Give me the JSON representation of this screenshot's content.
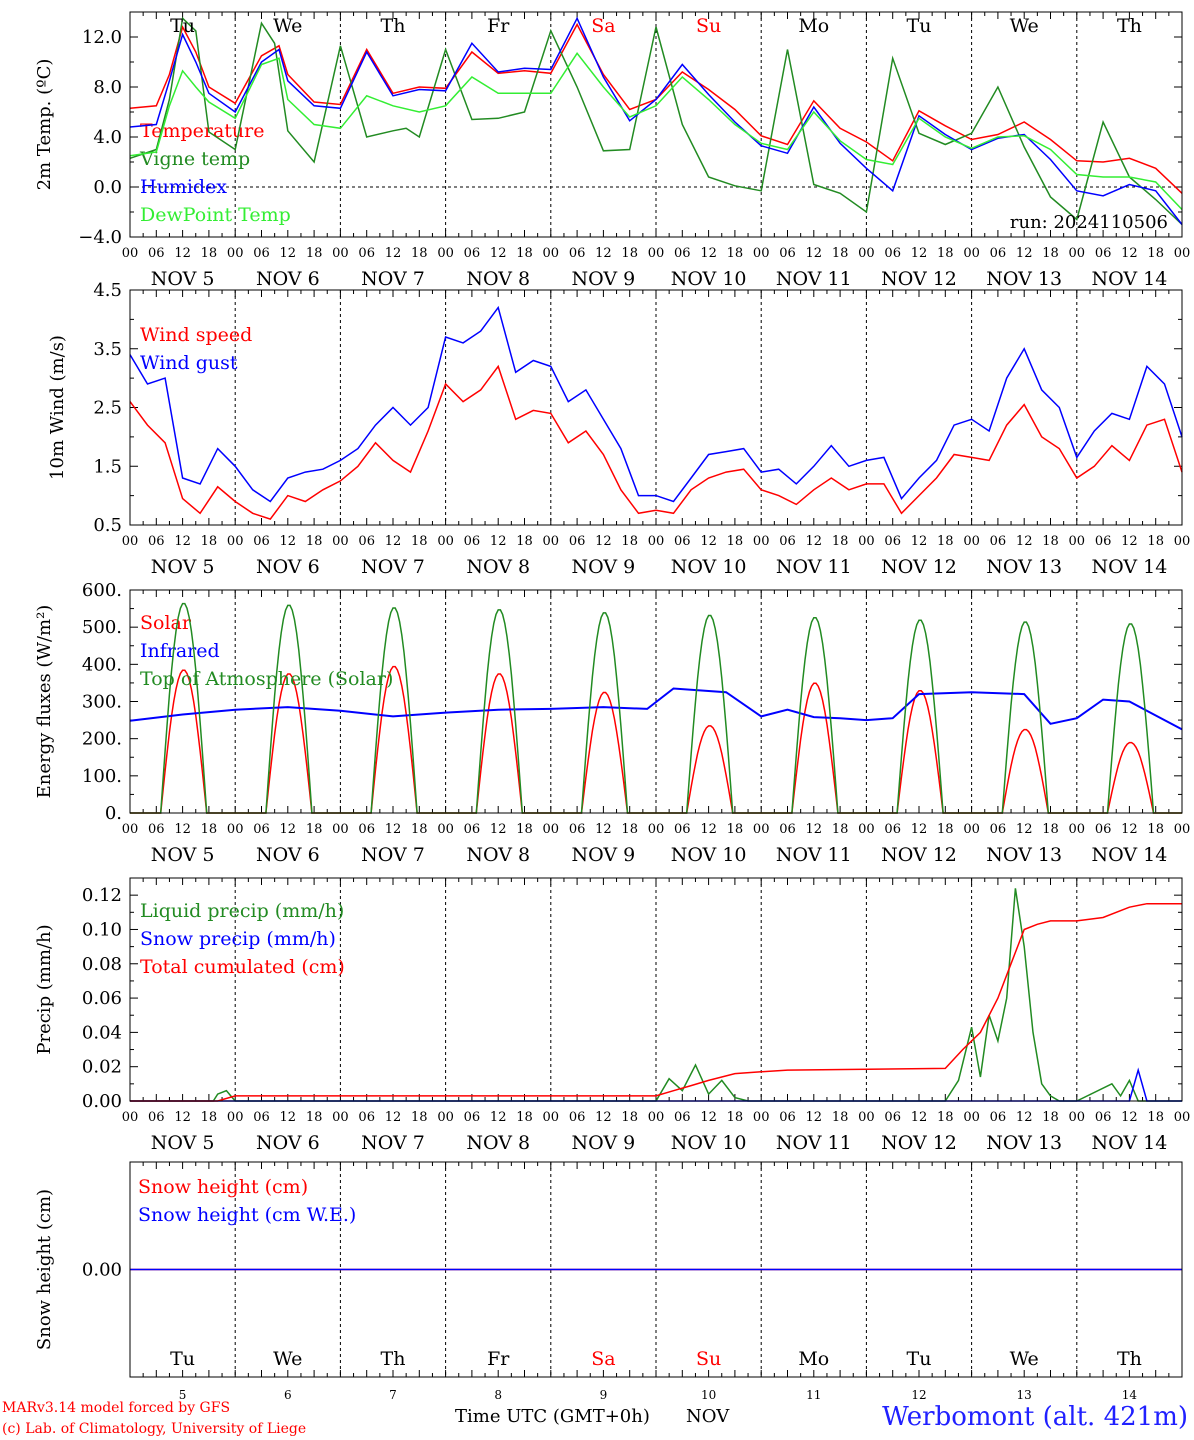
{
  "chart_data": [
    {
      "type": "line",
      "ylabel": "2m Temp. (ºC)",
      "ylim": [
        -4,
        14
      ],
      "yticks": [
        "12.0",
        "8.0",
        "4.0",
        "0.0",
        "−4.0"
      ],
      "run_label": "run: 2024110506",
      "zero_line": true,
      "series": [
        {
          "name": "Temperature",
          "color": "#ff0000",
          "t": [
            0,
            6,
            9,
            12,
            15,
            18,
            24,
            30,
            34,
            36,
            42,
            48,
            54,
            60,
            66,
            72,
            78,
            84,
            90,
            96,
            102,
            108,
            114,
            120,
            126,
            132,
            138,
            144,
            150,
            156,
            162,
            168,
            174,
            180,
            186,
            192,
            198,
            204,
            210,
            216,
            222,
            228,
            234,
            240
          ],
          "values": [
            6.3,
            6.5,
            9,
            12.8,
            10.8,
            8,
            6.7,
            10.5,
            11.3,
            9,
            6.8,
            6.6,
            11,
            7.5,
            8,
            7.9,
            10.8,
            9.1,
            9.3,
            9.1,
            13,
            9,
            6.2,
            7,
            9.2,
            7.8,
            6.2,
            4.1,
            3.4,
            6.9,
            4.7,
            3.6,
            2.1,
            6.1,
            4.9,
            3.8,
            4.2,
            5.2,
            3.8,
            2.1,
            2,
            2.3,
            1.5,
            -0.5
          ]
        },
        {
          "name": "Vigne temp",
          "color": "#228b22",
          "t": [
            0,
            6,
            9,
            12,
            15,
            18,
            24,
            30,
            33,
            36,
            42,
            48,
            54,
            60,
            63,
            66,
            72,
            78,
            84,
            90,
            96,
            102,
            108,
            114,
            120,
            126,
            132,
            138,
            144,
            150,
            156,
            162,
            168,
            174,
            180,
            186,
            192,
            198,
            204,
            210,
            216,
            222,
            228,
            234,
            240
          ],
          "values": [
            2.3,
            3,
            7,
            13.5,
            12.5,
            4.4,
            3,
            13.1,
            11.5,
            4.5,
            2,
            11.3,
            4,
            4.5,
            4.7,
            4,
            11,
            5.4,
            5.5,
            6,
            12.5,
            8,
            2.9,
            3,
            12.8,
            5,
            0.8,
            0.1,
            -0.3,
            11,
            0.2,
            -0.5,
            -2,
            10.3,
            4.3,
            3.4,
            4.3,
            8,
            3.2,
            -0.8,
            -2.6,
            5.2,
            0.8,
            -1,
            -3
          ]
        },
        {
          "name": "Humidex",
          "color": "#0000ff",
          "t": [
            0,
            6,
            9,
            12,
            15,
            18,
            24,
            30,
            34,
            36,
            42,
            48,
            54,
            60,
            66,
            72,
            78,
            84,
            90,
            96,
            102,
            108,
            114,
            120,
            126,
            132,
            138,
            144,
            150,
            156,
            162,
            168,
            174,
            180,
            186,
            192,
            198,
            204,
            210,
            216,
            222,
            228,
            234,
            240
          ],
          "values": [
            4.8,
            5,
            8.5,
            12.2,
            10,
            7.5,
            6,
            10,
            11,
            8.5,
            6.5,
            6.3,
            10.8,
            7.3,
            7.8,
            7.7,
            11.5,
            9.2,
            9.5,
            9.4,
            13.5,
            8.8,
            5.3,
            7,
            9.8,
            7.4,
            5.2,
            3.3,
            2.7,
            6.4,
            3.5,
            1.5,
            -0.3,
            5.7,
            4.2,
            3,
            3.9,
            4.2,
            2.2,
            -0.3,
            -0.7,
            0.2,
            -0.3,
            -3
          ]
        },
        {
          "name": "DewPoint Temp",
          "color": "#33ee33",
          "t": [
            0,
            6,
            9,
            12,
            15,
            18,
            24,
            30,
            34,
            36,
            42,
            48,
            54,
            60,
            66,
            72,
            78,
            84,
            90,
            96,
            102,
            108,
            114,
            120,
            126,
            132,
            138,
            144,
            150,
            156,
            162,
            168,
            174,
            180,
            186,
            192,
            198,
            204,
            210,
            216,
            222,
            228,
            234,
            240
          ],
          "values": [
            2.5,
            2.8,
            6.5,
            9.3,
            8,
            6.8,
            5.5,
            9.8,
            10.3,
            7,
            5,
            4.7,
            7.3,
            6.5,
            6,
            6.5,
            8.8,
            7.5,
            7.5,
            7.5,
            10.7,
            8,
            5.6,
            6.5,
            8.8,
            7,
            5,
            3.5,
            3,
            6,
            3.7,
            2.2,
            1.8,
            5.5,
            4,
            3.1,
            4,
            4.1,
            3,
            1,
            0.8,
            0.8,
            0.4,
            -1.8
          ]
        }
      ]
    },
    {
      "type": "line",
      "ylabel": "10m Wind (m/s)",
      "ylim": [
        0.5,
        4.5
      ],
      "yticks": [
        "4.5",
        "3.5",
        "2.5",
        "1.5",
        "0.5"
      ],
      "series": [
        {
          "name": "Wind speed",
          "color": "#ff0000",
          "t": [
            0,
            4,
            8,
            12,
            16,
            20,
            24,
            28,
            32,
            36,
            40,
            44,
            48,
            52,
            56,
            60,
            64,
            68,
            72,
            76,
            80,
            84,
            88,
            92,
            96,
            100,
            104,
            108,
            112,
            116,
            120,
            124,
            128,
            132,
            136,
            140,
            144,
            148,
            152,
            156,
            160,
            164,
            168,
            172,
            176,
            180,
            184,
            188,
            192,
            196,
            200,
            204,
            208,
            212,
            216,
            220,
            224,
            228,
            232,
            236,
            240
          ],
          "values": [
            2.6,
            2.2,
            1.9,
            0.95,
            0.7,
            1.15,
            0.9,
            0.7,
            0.6,
            1,
            0.9,
            1.1,
            1.25,
            1.5,
            1.9,
            1.6,
            1.4,
            2.1,
            2.9,
            2.6,
            2.8,
            3.2,
            2.3,
            2.45,
            2.4,
            1.9,
            2.1,
            1.7,
            1.1,
            0.7,
            0.75,
            0.7,
            1.1,
            1.3,
            1.4,
            1.45,
            1.1,
            1,
            0.85,
            1.1,
            1.3,
            1.1,
            1.2,
            1.2,
            0.7,
            1,
            1.3,
            1.7,
            1.65,
            1.6,
            2.2,
            2.55,
            2,
            1.8,
            1.3,
            1.5,
            1.85,
            1.6,
            2.2,
            2.3,
            1.4
          ]
        },
        {
          "name": "Wind gust",
          "color": "#0000ff",
          "t": [
            0,
            4,
            8,
            12,
            16,
            20,
            24,
            28,
            32,
            36,
            40,
            44,
            48,
            52,
            56,
            60,
            64,
            68,
            72,
            76,
            80,
            84,
            88,
            92,
            96,
            100,
            104,
            108,
            112,
            116,
            120,
            124,
            128,
            132,
            136,
            140,
            144,
            148,
            152,
            156,
            160,
            164,
            168,
            172,
            176,
            180,
            184,
            188,
            192,
            196,
            200,
            204,
            208,
            212,
            216,
            220,
            224,
            228,
            232,
            236,
            240
          ],
          "values": [
            3.4,
            2.9,
            3,
            1.3,
            1.2,
            1.8,
            1.5,
            1.1,
            0.9,
            1.3,
            1.4,
            1.45,
            1.6,
            1.8,
            2.2,
            2.5,
            2.2,
            2.5,
            3.7,
            3.6,
            3.8,
            4.2,
            3.1,
            3.3,
            3.2,
            2.6,
            2.8,
            2.3,
            1.8,
            1,
            1,
            0.9,
            1.3,
            1.7,
            1.75,
            1.8,
            1.4,
            1.45,
            1.2,
            1.5,
            1.85,
            1.5,
            1.6,
            1.65,
            0.95,
            1.3,
            1.6,
            2.2,
            2.3,
            2.1,
            3,
            3.5,
            2.8,
            2.5,
            1.65,
            2.1,
            2.4,
            2.3,
            3.2,
            2.9,
            2
          ]
        }
      ]
    },
    {
      "type": "line",
      "ylabel": "Energy fluxes (W/m²)",
      "ylim": [
        0,
        600
      ],
      "yticks": [
        "600.",
        "500.",
        "400.",
        "300.",
        "200.",
        "100.",
        "0."
      ],
      "series": [
        {
          "name": "Solar",
          "color": "#ff0000",
          "daily_peaks": [
            385,
            375,
            395,
            375,
            325,
            235,
            350,
            330,
            225,
            190
          ]
        },
        {
          "name": "Infrared",
          "color": "#0000ff",
          "t": [
            0,
            12,
            24,
            36,
            48,
            60,
            72,
            84,
            96,
            108,
            118,
            124,
            136,
            144,
            150,
            156,
            162,
            168,
            174,
            180,
            192,
            204,
            210,
            216,
            222,
            228,
            240
          ],
          "values": [
            248,
            265,
            278,
            285,
            275,
            260,
            270,
            278,
            280,
            285,
            280,
            335,
            325,
            260,
            278,
            258,
            255,
            250,
            255,
            320,
            325,
            320,
            240,
            255,
            305,
            300,
            225
          ]
        },
        {
          "name": "Top of Atmosphere (Solar)",
          "color": "#228b22",
          "daily_peaks": [
            565,
            560,
            553,
            548,
            540,
            533,
            527,
            520,
            515,
            510
          ]
        }
      ]
    },
    {
      "type": "line",
      "ylabel": "Precip (mm/h)",
      "ylim": [
        0,
        0.13
      ],
      "yticks": [
        "0.12",
        "0.10",
        "0.08",
        "0.06",
        "0.04",
        "0.02",
        "0.00"
      ],
      "series": [
        {
          "name": "Liquid precip (mm/h)",
          "color": "#228b22",
          "t": [
            0,
            19,
            20,
            22,
            23,
            24,
            120,
            123,
            126,
            129,
            132,
            135,
            138,
            141,
            144,
            186,
            189,
            192,
            194,
            196,
            198,
            200,
            202,
            204,
            206,
            208,
            210,
            212,
            216,
            224,
            226,
            228,
            230,
            232,
            234,
            240
          ],
          "values": [
            0,
            0,
            0.004,
            0.006,
            0.003,
            0,
            0,
            0.013,
            0.006,
            0.021,
            0.004,
            0.012,
            0.002,
            0,
            0,
            0,
            0.012,
            0.043,
            0.014,
            0.05,
            0.035,
            0.06,
            0.124,
            0.09,
            0.04,
            0.01,
            0.003,
            0,
            0,
            0.01,
            0.003,
            0.012,
            0,
            0,
            0,
            0
          ]
        },
        {
          "name": "Snow precip (mm/h)",
          "color": "#0000ff",
          "t": [
            0,
            228,
            230,
            232,
            234,
            240
          ],
          "values": [
            0,
            0,
            0.018,
            0,
            0,
            0
          ]
        },
        {
          "name": "Total cumulated (cm)",
          "color": "#ff0000",
          "t": [
            0,
            20,
            24,
            120,
            124,
            128,
            132,
            138,
            144,
            150,
            186,
            190,
            194,
            198,
            201,
            204,
            207,
            210,
            216,
            222,
            228,
            232,
            240
          ],
          "values": [
            0,
            0,
            0.003,
            0.003,
            0.006,
            0.009,
            0.012,
            0.016,
            0.017,
            0.018,
            0.019,
            0.03,
            0.04,
            0.06,
            0.08,
            0.1,
            0.103,
            0.105,
            0.105,
            0.107,
            0.113,
            0.115,
            0.115
          ]
        }
      ]
    },
    {
      "type": "line",
      "ylabel": "Snow height (cm)",
      "ylim": [
        -1,
        1
      ],
      "yticks": [
        "0.00"
      ],
      "series": [
        {
          "name": "Snow height (cm)",
          "color": "#ff0000",
          "t": [
            0,
            240
          ],
          "values": [
            0,
            0
          ]
        },
        {
          "name": "Snow height (cm W.E.)",
          "color": "#0000ff",
          "t": [
            0,
            240
          ],
          "values": [
            0,
            0
          ]
        }
      ]
    }
  ],
  "x_axis": {
    "hour_ticks": [
      "00",
      "06",
      "12",
      "18"
    ],
    "dates": [
      "NOV  5",
      "NOV  6",
      "NOV  7",
      "NOV  8",
      "NOV  9",
      "NOV 10",
      "NOV 11",
      "NOV 12",
      "NOV 13",
      "NOV 14"
    ],
    "weekdays": [
      "Tu",
      "We",
      "Th",
      "Fr",
      "Sa",
      "Su",
      "Mo",
      "Tu",
      "We",
      "Th"
    ],
    "weekend_color": "#ff0000",
    "day_numbers": [
      "5",
      "6",
      "7",
      "8",
      "9",
      "10",
      "11",
      "12",
      "13",
      "14"
    ]
  },
  "footer": {
    "credit_line1": "MARv3.14 model forced by GFS",
    "credit_line2": "(c) Lab. of Climatology, University of Liege",
    "xlabel": "Time UTC (GMT+0h)",
    "month": "NOV",
    "station": "Werbomont (alt. 421m)"
  }
}
